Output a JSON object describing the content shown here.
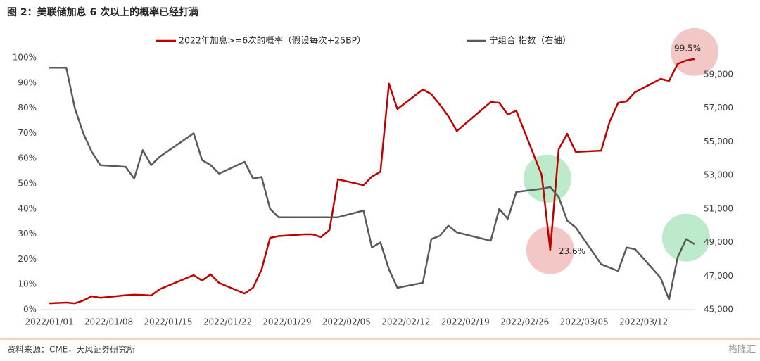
{
  "chart_data": {
    "type": "line",
    "title": "图 2：美联储加息 6 次以上的概率已经打满",
    "source": "资料来源：CME，天风证券研究所",
    "watermark": "格隆汇",
    "x": [
      "2022/01/01",
      "2022/01/03",
      "2022/01/04",
      "2022/01/05",
      "2022/01/06",
      "2022/01/07",
      "2022/01/10",
      "2022/01/11",
      "2022/01/12",
      "2022/01/13",
      "2022/01/14",
      "2022/01/18",
      "2022/01/19",
      "2022/01/20",
      "2022/01/21",
      "2022/01/24",
      "2022/01/25",
      "2022/01/26",
      "2022/01/27",
      "2022/01/28",
      "2022/01/31",
      "2022/02/01",
      "2022/02/02",
      "2022/02/03",
      "2022/02/04",
      "2022/02/07",
      "2022/02/08",
      "2022/02/09",
      "2022/02/10",
      "2022/02/11",
      "2022/02/14",
      "2022/02/15",
      "2022/02/16",
      "2022/02/17",
      "2022/02/18",
      "2022/02/22",
      "2022/02/23",
      "2022/02/24",
      "2022/02/25",
      "2022/02/28",
      "2022/03/01",
      "2022/03/02",
      "2022/03/03",
      "2022/03/04",
      "2022/03/07",
      "2022/03/08",
      "2022/03/09",
      "2022/03/10",
      "2022/03/11",
      "2022/03/14",
      "2022/03/15",
      "2022/03/16",
      "2022/03/17",
      "2022/03/18"
    ],
    "xlim": [
      "2021/12/31",
      "2022/03/18"
    ],
    "xticks": [
      "2022/01/01",
      "2022/01/08",
      "2022/01/15",
      "2022/01/22",
      "2022/01/29",
      "2022/02/05",
      "2022/02/12",
      "2022/02/19",
      "2022/02/26",
      "2022/03/05",
      "2022/03/12"
    ],
    "ylim": [
      0,
      100
    ],
    "yticks": [
      {
        "value": 0,
        "label": "0%"
      },
      {
        "value": 10,
        "label": "10%"
      },
      {
        "value": 20,
        "label": "20%"
      },
      {
        "value": 30,
        "label": "30%"
      },
      {
        "value": 40,
        "label": "40%"
      },
      {
        "value": 50,
        "label": "50%"
      },
      {
        "value": 60,
        "label": "60%"
      },
      {
        "value": 70,
        "label": "70%"
      },
      {
        "value": 80,
        "label": "80%"
      },
      {
        "value": 90,
        "label": "90%"
      },
      {
        "value": 100,
        "label": "100%"
      }
    ],
    "y2lim": [
      45000,
      60000
    ],
    "y2ticks": [
      {
        "value": 45000,
        "label": "45,000"
      },
      {
        "value": 47000,
        "label": "47,000"
      },
      {
        "value": 49000,
        "label": "49,000"
      },
      {
        "value": 51000,
        "label": "51,000"
      },
      {
        "value": 53000,
        "label": "53,000"
      },
      {
        "value": 55000,
        "label": "55,000"
      },
      {
        "value": 57000,
        "label": "57,000"
      },
      {
        "value": 59000,
        "label": "59,000"
      }
    ],
    "series": [
      {
        "name": "2022年加息>=6次的概率（假设每次+25BP）",
        "color": "#c00000",
        "values": [
          2.5,
          2.8,
          2.5,
          3.6,
          5.3,
          4.7,
          5.7,
          5.9,
          5.8,
          5.6,
          8.1,
          13.7,
          11.5,
          14,
          10.6,
          6.4,
          8.7,
          15.9,
          28.5,
          29.2,
          29.9,
          29.9,
          28.8,
          31.6,
          51.7,
          49.4,
          52.8,
          54.7,
          89.7,
          79.6,
          87.4,
          85.5,
          81.3,
          76.8,
          70.9,
          82.4,
          82.1,
          77.4,
          79,
          53.4,
          23.6,
          63.7,
          69.8,
          62.6,
          63.1,
          74.6,
          82.1,
          82.7,
          86.3,
          91.6,
          90.8,
          97.5,
          98.9,
          99.5
        ],
        "value_labels": [
          null,
          null,
          null,
          null,
          null,
          null,
          null,
          null,
          null,
          null,
          null,
          null,
          null,
          null,
          null,
          null,
          null,
          null,
          null,
          null,
          null,
          null,
          null,
          null,
          null,
          null,
          null,
          null,
          null,
          null,
          null,
          null,
          null,
          null,
          null,
          null,
          null,
          null,
          null,
          null,
          "23.6%",
          null,
          null,
          null,
          null,
          null,
          null,
          null,
          null,
          null,
          null,
          null,
          null,
          "99.5%"
        ]
      },
      {
        "name": "宁组合 指数（右轴）",
        "color": "#595959",
        "axis": "y2",
        "values": [
          59400,
          59400,
          57000,
          55500,
          54400,
          53600,
          53500,
          52800,
          54500,
          53600,
          54100,
          55500,
          53900,
          53600,
          53100,
          53800,
          52800,
          52900,
          51000,
          50500,
          50500,
          50500,
          50500,
          50500,
          50500,
          50900,
          48700,
          49000,
          47400,
          46300,
          46600,
          49200,
          49400,
          50000,
          49600,
          49100,
          51000,
          50400,
          52000,
          52200,
          52300,
          51700,
          50300,
          49900,
          47700,
          47500,
          47300,
          48700,
          48600,
          46900,
          45600,
          48100,
          49200,
          48900
        ]
      }
    ]
  }
}
